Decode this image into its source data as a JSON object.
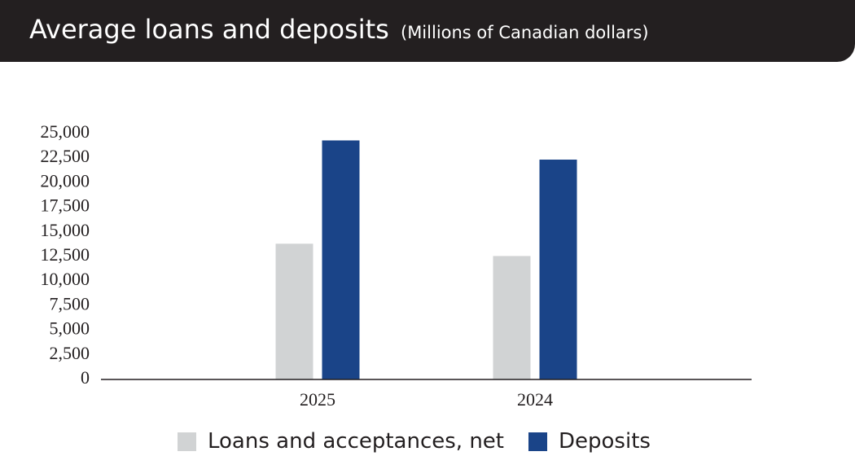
{
  "header": {
    "title": "Average loans and deposits",
    "subtitle": "(Millions of Canadian dollars)"
  },
  "colors": {
    "header_background": "#231f20",
    "loans": "#d1d3d4",
    "deposits": "#1a4488",
    "axis": "#231f20"
  },
  "chart_data": {
    "type": "bar",
    "title": "Average loans and deposits",
    "subtitle": "(Millions of Canadian dollars)",
    "categories": [
      "2025",
      "2024"
    ],
    "series": [
      {
        "name": "Loans and acceptances, net",
        "values": [
          13800,
          12550
        ]
      },
      {
        "name": "Deposits",
        "values": [
          24300,
          22350
        ]
      }
    ],
    "ylim": [
      0,
      25000
    ],
    "yticks": [
      0,
      2500,
      5000,
      7500,
      10000,
      12500,
      15000,
      17500,
      20000,
      22500,
      25000
    ],
    "ytick_labels": [
      "0",
      "2,500",
      "5,000",
      "7,500",
      "10,000",
      "12,500",
      "15,000",
      "17,500",
      "20,000",
      "22,500",
      "25,000"
    ],
    "xlabel": "",
    "ylabel": "",
    "grid": false,
    "legend_position": "bottom"
  }
}
